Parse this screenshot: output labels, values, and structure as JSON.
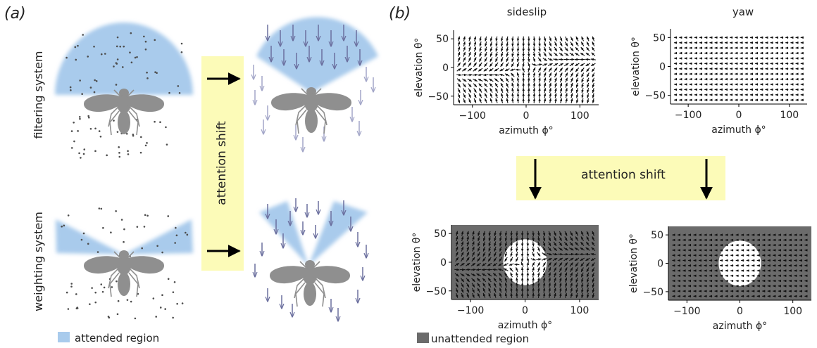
{
  "panel_a": {
    "label": "(a)",
    "row_top_label": "filtering system",
    "row_bottom_label": "weighting system",
    "shift_label": "attention shift",
    "legend_label": "attended region"
  },
  "panel_b": {
    "label": "(b)",
    "shift_label": "attention shift",
    "legend_label": "unattended region"
  },
  "colors": {
    "attended": "#a9cbec",
    "arrow_flow": "#6b6f9e",
    "arrow_flow_light": "#a3a6c8",
    "fly": "#8f8f8f",
    "dots": "#4d4d4d",
    "shift_box": "#fcfbb8",
    "unattended": "#6b6b6b",
    "quiver": "#111111"
  },
  "chart_data": [
    {
      "type": "quiver",
      "title": "sideslip",
      "xlabel": "azimuth ϕ°",
      "ylabel": "elevation θ°",
      "xlim": [
        -135,
        135
      ],
      "ylim": [
        -65,
        65
      ],
      "xticks": [
        "−100",
        "0",
        "100"
      ],
      "yticks": [
        "50",
        "0",
        "−50"
      ],
      "field": "sideslip",
      "mask": "none"
    },
    {
      "type": "quiver",
      "title": "yaw",
      "xlabel": "azimuth ϕ°",
      "ylabel": "elevation θ°",
      "xlim": [
        -135,
        135
      ],
      "ylim": [
        -65,
        65
      ],
      "xticks": [
        "−100",
        "0",
        "100"
      ],
      "yticks": [
        "50",
        "0",
        "−50"
      ],
      "field": "yaw",
      "mask": "none"
    },
    {
      "type": "quiver",
      "title": "",
      "xlabel": "azimuth ϕ°",
      "ylabel": "elevation θ°",
      "xlim": [
        -135,
        135
      ],
      "ylim": [
        -65,
        65
      ],
      "xticks": [
        "−100",
        "0",
        "100"
      ],
      "yticks": [
        "50",
        "0",
        "−50"
      ],
      "field": "sideslip",
      "mask": "attended disk at 0°,0° radius ~40°"
    },
    {
      "type": "quiver",
      "title": "",
      "xlabel": "azimuth ϕ°",
      "ylabel": "elevation θ°",
      "xlim": [
        -135,
        135
      ],
      "ylim": [
        -65,
        65
      ],
      "xticks": [
        "−100",
        "0",
        "100"
      ],
      "yticks": [
        "50",
        "0",
        "−50"
      ],
      "field": "yaw",
      "mask": "attended disk at 0°,0° radius ~40°"
    }
  ]
}
